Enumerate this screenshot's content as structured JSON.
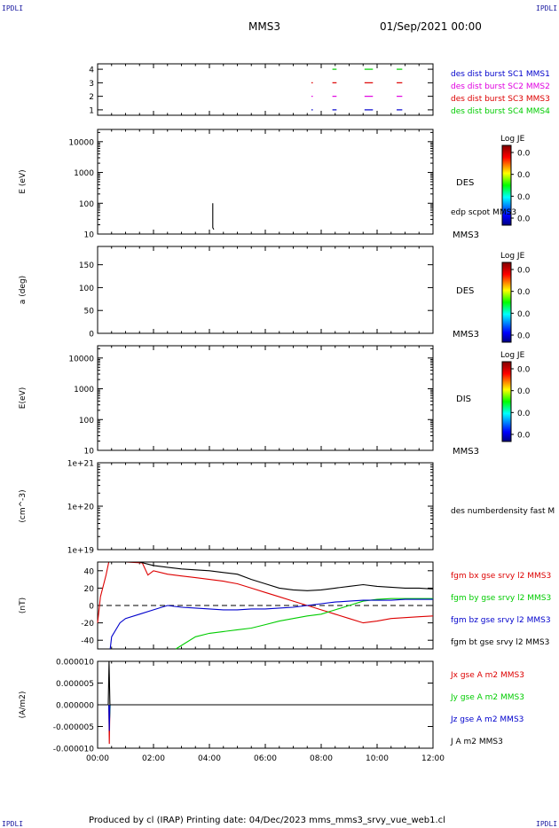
{
  "corner_labels": {
    "tl": "IPDLI",
    "tr": "IPDLI",
    "bl": "IPDLI",
    "br": "IPDLI"
  },
  "header": {
    "spacecraft": "MMS3",
    "datetime": "01/Sep/2021 00:00"
  },
  "footer": {
    "text": "Produced by cl (IRAP)   Printing date: 04/Dec/2023   mms_mms3_srvy_vue_web1.cl"
  },
  "time_axis": {
    "ticks": [
      "00:00",
      "02:00",
      "04:00",
      "06:00",
      "08:00",
      "10:00",
      "12:00"
    ],
    "range_hours": [
      0,
      12
    ]
  },
  "colors": {
    "blue": "#0000cc",
    "magenta": "#e000e0",
    "red": "#dd0000",
    "green": "#00cc00",
    "black": "#000000"
  },
  "chart_data": [
    {
      "panel": "burst",
      "type": "scatter",
      "ylim": [
        0.6,
        4.4
      ],
      "ytick_labels": [
        "1",
        "2",
        "3",
        "4"
      ],
      "legend": [
        {
          "label": "des dist burst SC1 MMS1",
          "color": "#0000cc"
        },
        {
          "label": "des dist burst SC2 MMS2",
          "color": "#e000e0"
        },
        {
          "label": "des dist burst SC3 MMS3",
          "color": "#dd0000"
        },
        {
          "label": "des dist burst SC4 MMS4",
          "color": "#00cc00"
        }
      ],
      "segments": [
        {
          "level": 1,
          "start": 7.65,
          "end": 7.7,
          "color": "#0000cc"
        },
        {
          "level": 1,
          "start": 8.4,
          "end": 8.55,
          "color": "#0000cc"
        },
        {
          "level": 1,
          "start": 9.55,
          "end": 9.85,
          "color": "#0000cc"
        },
        {
          "level": 1,
          "start": 10.7,
          "end": 10.9,
          "color": "#0000cc"
        },
        {
          "level": 2,
          "start": 7.65,
          "end": 7.7,
          "color": "#e000e0"
        },
        {
          "level": 2,
          "start": 8.4,
          "end": 8.55,
          "color": "#e000e0"
        },
        {
          "level": 2,
          "start": 9.55,
          "end": 9.85,
          "color": "#e000e0"
        },
        {
          "level": 2,
          "start": 10.7,
          "end": 10.9,
          "color": "#e000e0"
        },
        {
          "level": 3,
          "start": 7.65,
          "end": 7.7,
          "color": "#dd0000"
        },
        {
          "level": 3,
          "start": 8.4,
          "end": 8.55,
          "color": "#dd0000"
        },
        {
          "level": 3,
          "start": 9.55,
          "end": 9.85,
          "color": "#dd0000"
        },
        {
          "level": 3,
          "start": 10.7,
          "end": 10.9,
          "color": "#dd0000"
        },
        {
          "level": 4,
          "start": 8.4,
          "end": 8.55,
          "color": "#00cc00"
        },
        {
          "level": 4,
          "start": 9.55,
          "end": 9.85,
          "color": "#00cc00"
        },
        {
          "level": 4,
          "start": 10.7,
          "end": 10.9,
          "color": "#00cc00"
        }
      ]
    },
    {
      "panel": "des_energy",
      "type": "heatmap",
      "ylabel": "E (eV)",
      "yscale": "log",
      "ylim": [
        10,
        25000
      ],
      "ytick_labels": [
        "10",
        "100",
        "1000",
        "10000"
      ],
      "right_label": "DES",
      "right_sublabel": "MMS3",
      "overlay_label": "edp scpot MMS3",
      "overlay_points": [
        {
          "t": 4.12,
          "v": 100
        },
        {
          "t": 4.12,
          "v": 16
        },
        {
          "t": 4.16,
          "v": 14
        }
      ],
      "colorbar": {
        "title": "Log JE",
        "ticks": [
          "0.0",
          "0.0",
          "0.0",
          "0.0"
        ]
      }
    },
    {
      "panel": "des_pitch",
      "type": "heatmap",
      "ylabel": "a (deg)",
      "ylim": [
        0,
        190
      ],
      "ytick_labels": [
        "0",
        "50",
        "100",
        "150"
      ],
      "right_label": "DES",
      "right_sublabel": "MMS3",
      "colorbar": {
        "title": "Log JE",
        "ticks": [
          "0.0",
          "0.0",
          "0.0",
          "0.0"
        ]
      }
    },
    {
      "panel": "dis_energy",
      "type": "heatmap",
      "ylabel": "E(eV)",
      "yscale": "log",
      "ylim": [
        10,
        25000
      ],
      "ytick_labels": [
        "10",
        "100",
        "1000",
        "10000"
      ],
      "right_label": "DIS",
      "right_sublabel": "MMS3",
      "colorbar": {
        "title": "Log JE",
        "ticks": [
          "0.0",
          "0.0",
          "0.0",
          "0.0"
        ]
      }
    },
    {
      "panel": "density",
      "type": "line",
      "ylabel": "(cm^-3)",
      "yscale": "log",
      "ylim": [
        1e+19,
        1e+21
      ],
      "ytick_labels": [
        "1e+19",
        "1e+20",
        "1e+21"
      ],
      "right_label": "des numberdensity fast M"
    },
    {
      "panel": "fgm",
      "type": "line",
      "ylabel": "(nT)",
      "ylim": [
        -50,
        50
      ],
      "ytick_labels": [
        "-40",
        "-20",
        "0",
        "20",
        "40"
      ],
      "series": [
        {
          "name": "fgm bx gse srvy l2 MMS3",
          "color": "#dd0000",
          "points": [
            [
              0.0,
              -20
            ],
            [
              0.1,
              10
            ],
            [
              0.3,
              35
            ],
            [
              0.4,
              50
            ],
            [
              1.0,
              50
            ],
            [
              1.6,
              49
            ],
            [
              1.8,
              35
            ],
            [
              2.0,
              40
            ],
            [
              2.5,
              36
            ],
            [
              3.0,
              34
            ],
            [
              3.5,
              32
            ],
            [
              4.0,
              30
            ],
            [
              4.5,
              28
            ],
            [
              5.0,
              25
            ],
            [
              5.5,
              20
            ],
            [
              6.0,
              15
            ],
            [
              6.5,
              10
            ],
            [
              7.0,
              5
            ],
            [
              7.5,
              0
            ],
            [
              8.0,
              -5
            ],
            [
              8.5,
              -10
            ],
            [
              9.0,
              -15
            ],
            [
              9.5,
              -20
            ],
            [
              10.0,
              -18
            ],
            [
              10.5,
              -15
            ],
            [
              11.0,
              -14
            ],
            [
              11.5,
              -13
            ],
            [
              12.0,
              -12
            ]
          ]
        },
        {
          "name": "fgm by gse srvy l2 MMS3",
          "color": "#00cc00",
          "points": [
            [
              2.8,
              -50
            ],
            [
              3.5,
              -36
            ],
            [
              4.0,
              -32
            ],
            [
              4.5,
              -30
            ],
            [
              5.0,
              -28
            ],
            [
              5.5,
              -26
            ],
            [
              6.0,
              -22
            ],
            [
              6.5,
              -18
            ],
            [
              7.0,
              -15
            ],
            [
              7.5,
              -12
            ],
            [
              8.0,
              -10
            ],
            [
              8.5,
              -5
            ],
            [
              9.0,
              0
            ],
            [
              9.5,
              5
            ],
            [
              10.0,
              7
            ],
            [
              10.5,
              8
            ],
            [
              11.0,
              8
            ],
            [
              11.5,
              8
            ],
            [
              12.0,
              8
            ]
          ]
        },
        {
          "name": "fgm bz gse srvy l2 MMS3",
          "color": "#0000cc",
          "points": [
            [
              0.45,
              -50
            ],
            [
              0.5,
              -36
            ],
            [
              0.8,
              -20
            ],
            [
              1.0,
              -15
            ],
            [
              1.5,
              -10
            ],
            [
              2.0,
              -5
            ],
            [
              2.5,
              0
            ],
            [
              3.0,
              -2
            ],
            [
              3.5,
              -3
            ],
            [
              4.0,
              -4
            ],
            [
              4.5,
              -5
            ],
            [
              5.0,
              -5
            ],
            [
              5.5,
              -4
            ],
            [
              6.0,
              -4
            ],
            [
              6.5,
              -3
            ],
            [
              7.0,
              -2
            ],
            [
              7.5,
              0
            ],
            [
              8.0,
              2
            ],
            [
              8.5,
              4
            ],
            [
              9.0,
              5
            ],
            [
              9.5,
              6
            ],
            [
              10.0,
              6
            ],
            [
              10.5,
              6
            ],
            [
              11.0,
              7
            ],
            [
              11.5,
              7
            ],
            [
              12.0,
              7
            ]
          ]
        },
        {
          "name": "fgm bt gse srvy l2 MMS3",
          "color": "#000000",
          "points": [
            [
              0.0,
              50
            ],
            [
              1.5,
              50
            ],
            [
              2.0,
              46
            ],
            [
              2.5,
              44
            ],
            [
              3.0,
              42
            ],
            [
              3.5,
              41
            ],
            [
              4.0,
              40
            ],
            [
              4.5,
              38
            ],
            [
              5.0,
              36
            ],
            [
              5.5,
              30
            ],
            [
              6.0,
              25
            ],
            [
              6.5,
              20
            ],
            [
              7.0,
              18
            ],
            [
              7.5,
              17
            ],
            [
              8.0,
              18
            ],
            [
              8.5,
              20
            ],
            [
              9.0,
              22
            ],
            [
              9.5,
              24
            ],
            [
              10.0,
              22
            ],
            [
              10.5,
              21
            ],
            [
              11.0,
              20
            ],
            [
              11.5,
              20
            ],
            [
              12.0,
              19
            ]
          ]
        }
      ]
    },
    {
      "panel": "current",
      "type": "line",
      "ylabel": "(A/m2)",
      "ylim": [
        -1e-05,
        1e-05
      ],
      "ytick_labels": [
        "-0.000010",
        "-0.000005",
        "0.000000",
        "0.000005",
        "0.000010"
      ],
      "series": [
        {
          "name": "Jx gse A m2 MMS3",
          "color": "#dd0000",
          "points": [
            [
              0.4,
              0
            ],
            [
              0.42,
              -9e-06
            ],
            [
              0.44,
              0
            ]
          ]
        },
        {
          "name": "Jy gse A m2 MMS3",
          "color": "#00cc00",
          "points": [
            [
              0.4,
              0
            ],
            [
              0.43,
              -3e-06
            ],
            [
              0.45,
              0
            ]
          ]
        },
        {
          "name": "Jz gse A m2 MMS3",
          "color": "#0000cc",
          "points": [
            [
              0.4,
              0
            ],
            [
              0.42,
              -6e-06
            ],
            [
              0.44,
              0
            ]
          ]
        },
        {
          "name": "J A m2 MMS3",
          "color": "#000000",
          "points": [
            [
              0.0,
              0
            ],
            [
              0.38,
              0
            ],
            [
              0.41,
              1e-05
            ],
            [
              0.44,
              0
            ],
            [
              12.0,
              0
            ]
          ]
        }
      ]
    }
  ]
}
